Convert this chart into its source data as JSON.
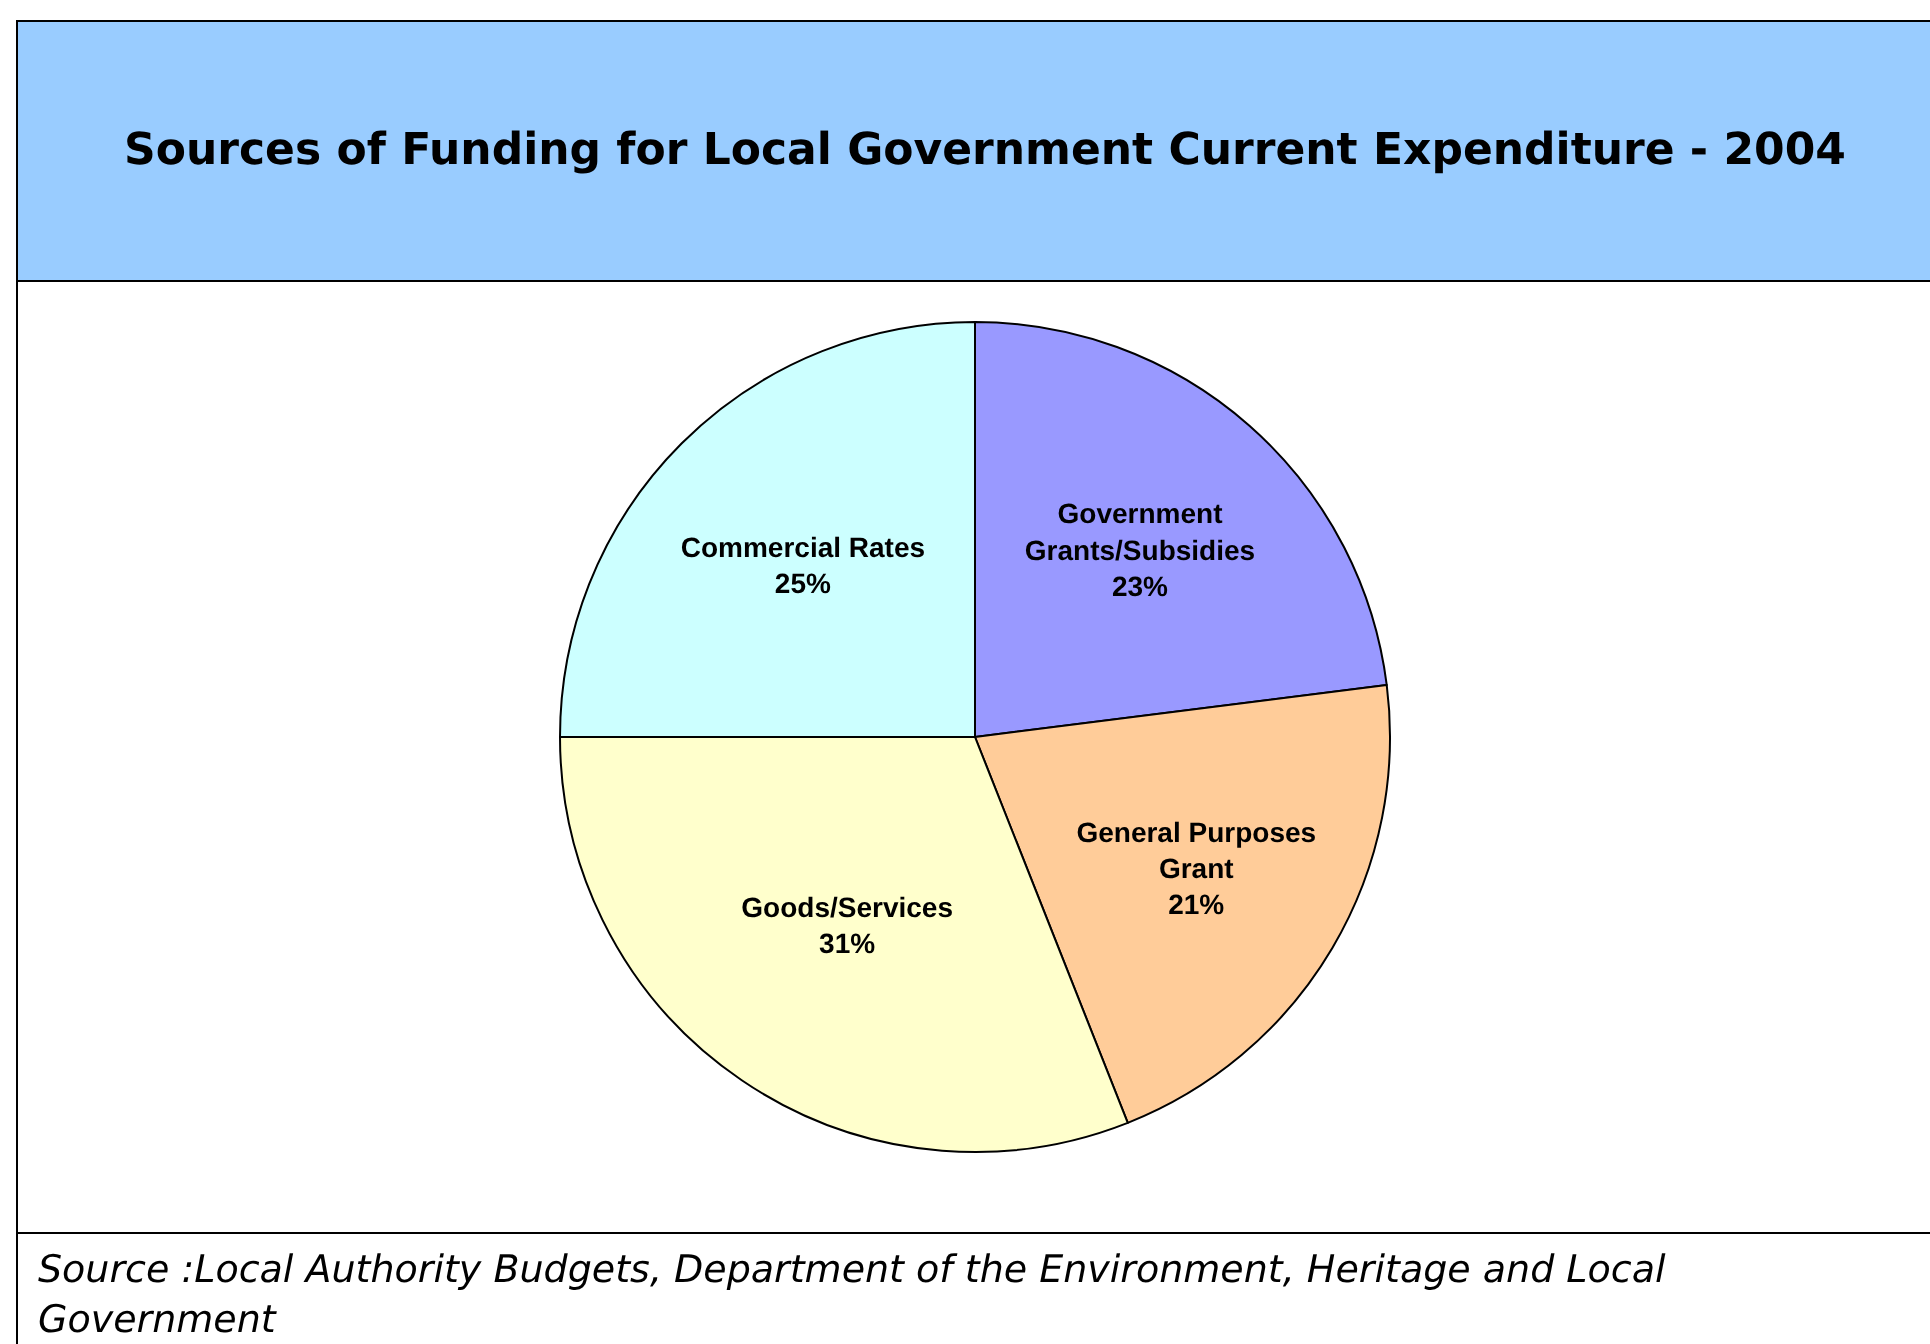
{
  "chart_data": {
    "type": "pie",
    "title": "Sources of Funding for Local Government Current Expenditure - 2004",
    "categories": [
      "Government Grants/Subsidies",
      "General Purposes Grant",
      "Goods/Services",
      "Commercial Rates"
    ],
    "values": [
      23,
      21,
      31,
      25
    ],
    "value_labels": [
      "23%",
      "21%",
      "31%",
      "25%"
    ],
    "colors": [
      "#9999ff",
      "#ffcc99",
      "#ffffcc",
      "#ccffff"
    ],
    "annotations": [
      "Source :Local Authority Budgets,  Department of the Environment, Heritage and Local Government"
    ]
  }
}
